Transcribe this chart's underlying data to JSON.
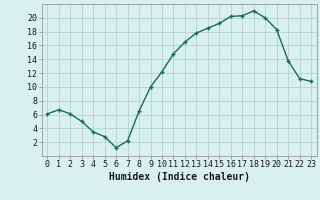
{
  "x": [
    0,
    1,
    2,
    3,
    4,
    5,
    6,
    7,
    8,
    9,
    10,
    11,
    12,
    13,
    14,
    15,
    16,
    17,
    18,
    19,
    20,
    21,
    22,
    23
  ],
  "y": [
    6.1,
    6.7,
    6.1,
    5.0,
    3.5,
    2.8,
    1.2,
    2.2,
    6.5,
    10.0,
    12.2,
    14.8,
    16.5,
    17.8,
    18.5,
    19.2,
    20.2,
    20.3,
    21.0,
    20.0,
    18.3,
    13.8,
    11.2,
    10.8
  ],
  "line_color": "#1a6b5a",
  "bg_color": "#d8f0ee",
  "grid_color": "#b0ccc8",
  "xlabel": "Humidex (Indice chaleur)",
  "ylim": [
    0,
    22
  ],
  "xlim": [
    -0.5,
    23.5
  ],
  "yticks": [
    2,
    4,
    6,
    8,
    10,
    12,
    14,
    16,
    18,
    20
  ],
  "xticks": [
    0,
    1,
    2,
    3,
    4,
    5,
    6,
    7,
    8,
    9,
    10,
    11,
    12,
    13,
    14,
    15,
    16,
    17,
    18,
    19,
    20,
    21,
    22,
    23
  ],
  "xlabel_fontsize": 7,
  "tick_fontsize": 6,
  "marker": "+",
  "marker_size": 3,
  "line_width": 1.0
}
